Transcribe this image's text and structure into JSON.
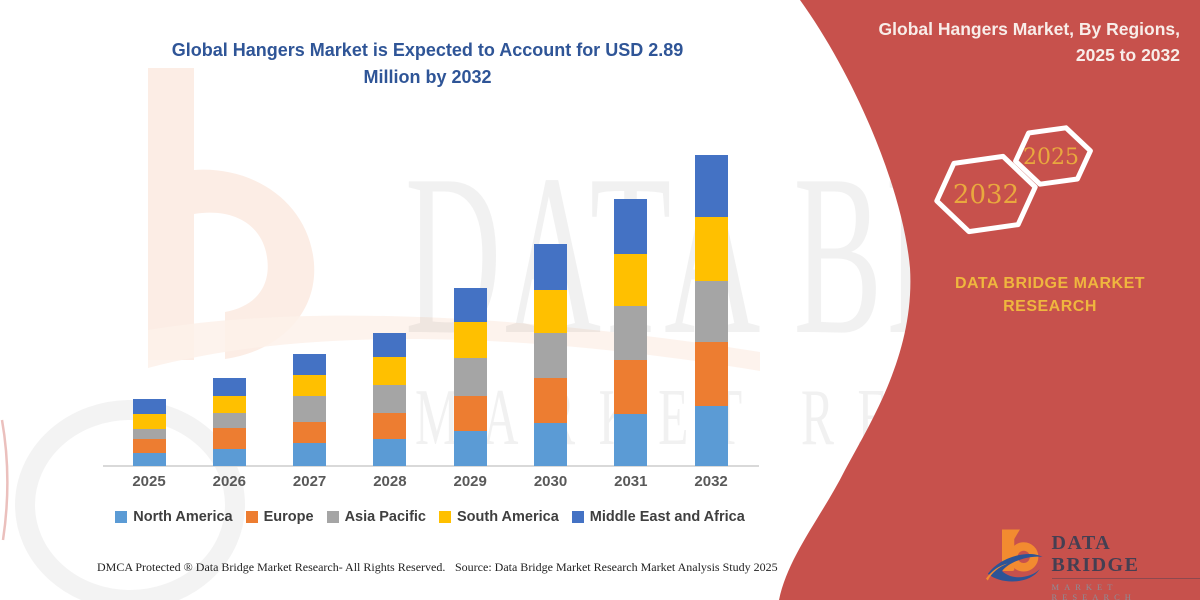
{
  "chart_data": {
    "type": "bar",
    "stacked": true,
    "title": "Global Hangers Market is Expected to Account for USD 2.89 Million by 2032",
    "title_lines": [
      "Global Hangers Market is Expected to Account for USD 2.89",
      "Million by 2032"
    ],
    "unit": "USD Million",
    "categories": [
      "2025",
      "2026",
      "2027",
      "2028",
      "2029",
      "2030",
      "2031",
      "2032"
    ],
    "series": [
      {
        "name": "North America",
        "color": "#5B9BD5",
        "values": [
          0.12,
          0.16,
          0.21,
          0.25,
          0.33,
          0.4,
          0.48,
          0.56
        ]
      },
      {
        "name": "Europe",
        "color": "#ED7D31",
        "values": [
          0.13,
          0.19,
          0.2,
          0.24,
          0.32,
          0.42,
          0.51,
          0.59
        ]
      },
      {
        "name": "Asia Pacific",
        "color": "#A5A5A5",
        "values": [
          0.09,
          0.14,
          0.24,
          0.26,
          0.35,
          0.42,
          0.5,
          0.57
        ]
      },
      {
        "name": "South America",
        "color": "#FFC000",
        "values": [
          0.14,
          0.16,
          0.2,
          0.26,
          0.34,
          0.4,
          0.48,
          0.59
        ]
      },
      {
        "name": "Middle East and Africa",
        "color": "#4472C4",
        "values": [
          0.14,
          0.17,
          0.19,
          0.23,
          0.31,
          0.42,
          0.51,
          0.58
        ]
      }
    ],
    "totals_by_year": [
      0.62,
      0.82,
      1.04,
      1.24,
      1.65,
      2.06,
      2.48,
      2.89
    ],
    "legend_position": "bottom",
    "gridlines": false,
    "y_axis_visible": false
  },
  "colors": {
    "chart_title": "#2F5597",
    "panel_red": "#C7514C",
    "gold_accent": "#EFB63E",
    "axis_label": "#595959",
    "axis_line": "#D9D9D9"
  },
  "side_panel": {
    "title": "Global Hangers Market, By Regions, 2025 to 2032",
    "title_lines": [
      "Global Hangers Market, By Regions,",
      "2025 to 2032"
    ],
    "hexagon_large_label": "2032",
    "hexagon_small_label": "2025",
    "brand_lines": [
      "DATA BRIDGE MARKET",
      "RESEARCH"
    ]
  },
  "logo": {
    "name_top": "DATA BRIDGE",
    "name_bottom": "MARKET RESEARCH"
  },
  "watermark": {
    "text_top": "DATA BRIDGE",
    "text_bottom": "MARKET RESEARCH"
  },
  "footer": {
    "left": "DMCA Protected ® Data Bridge Market Research-  All Rights Reserved.",
    "right": "Source: Data Bridge Market Research  Market Analysis Study 2025"
  }
}
